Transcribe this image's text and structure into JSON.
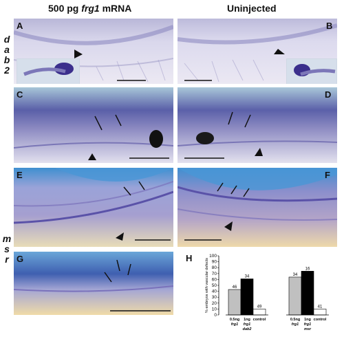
{
  "headers": {
    "left_dose": "500 pg ",
    "left_gene": "frg1",
    "left_suffix": " mRNA",
    "right": "Uninjected"
  },
  "side_labels": {
    "dab2": [
      "d",
      "a",
      "b",
      "2"
    ],
    "msr": [
      "m",
      "s",
      "r"
    ]
  },
  "panels": {
    "A": "A",
    "B": "B",
    "C": "C",
    "D": "D",
    "E": "E",
    "F": "F",
    "G": "G",
    "H": "H"
  },
  "chart_data": {
    "type": "bar",
    "ylabel": "% embryos with vascular defects",
    "ylim": [
      0,
      100
    ],
    "yticks": [
      0,
      10,
      20,
      30,
      40,
      50,
      60,
      70,
      80,
      90,
      100
    ],
    "groups": [
      {
        "bars": [
          {
            "label_top": "0.5ng",
            "label_bottom": "frg1",
            "label_extra": "",
            "value": 43,
            "n": "46",
            "color": "#c0c0c0"
          },
          {
            "label_top": "1ng",
            "label_bottom": "frg1",
            "label_extra": "dab2",
            "value": 61,
            "n": "34",
            "color": "#000000"
          },
          {
            "label_top": "control",
            "label_bottom": "",
            "label_extra": "",
            "value": 10,
            "n": "49",
            "color": "#ffffff"
          }
        ]
      },
      {
        "bars": [
          {
            "label_top": "0.5ng",
            "label_bottom": "frg1",
            "label_extra": "",
            "value": 64,
            "n": "34",
            "color": "#c0c0c0"
          },
          {
            "label_top": "1ng",
            "label_bottom": "frg1",
            "label_extra": "msr",
            "value": 74,
            "n": "16",
            "color": "#000000"
          },
          {
            "label_top": "control",
            "label_bottom": "",
            "label_extra": "",
            "value": 10,
            "n": "41",
            "color": "#ffffff"
          }
        ]
      }
    ]
  }
}
